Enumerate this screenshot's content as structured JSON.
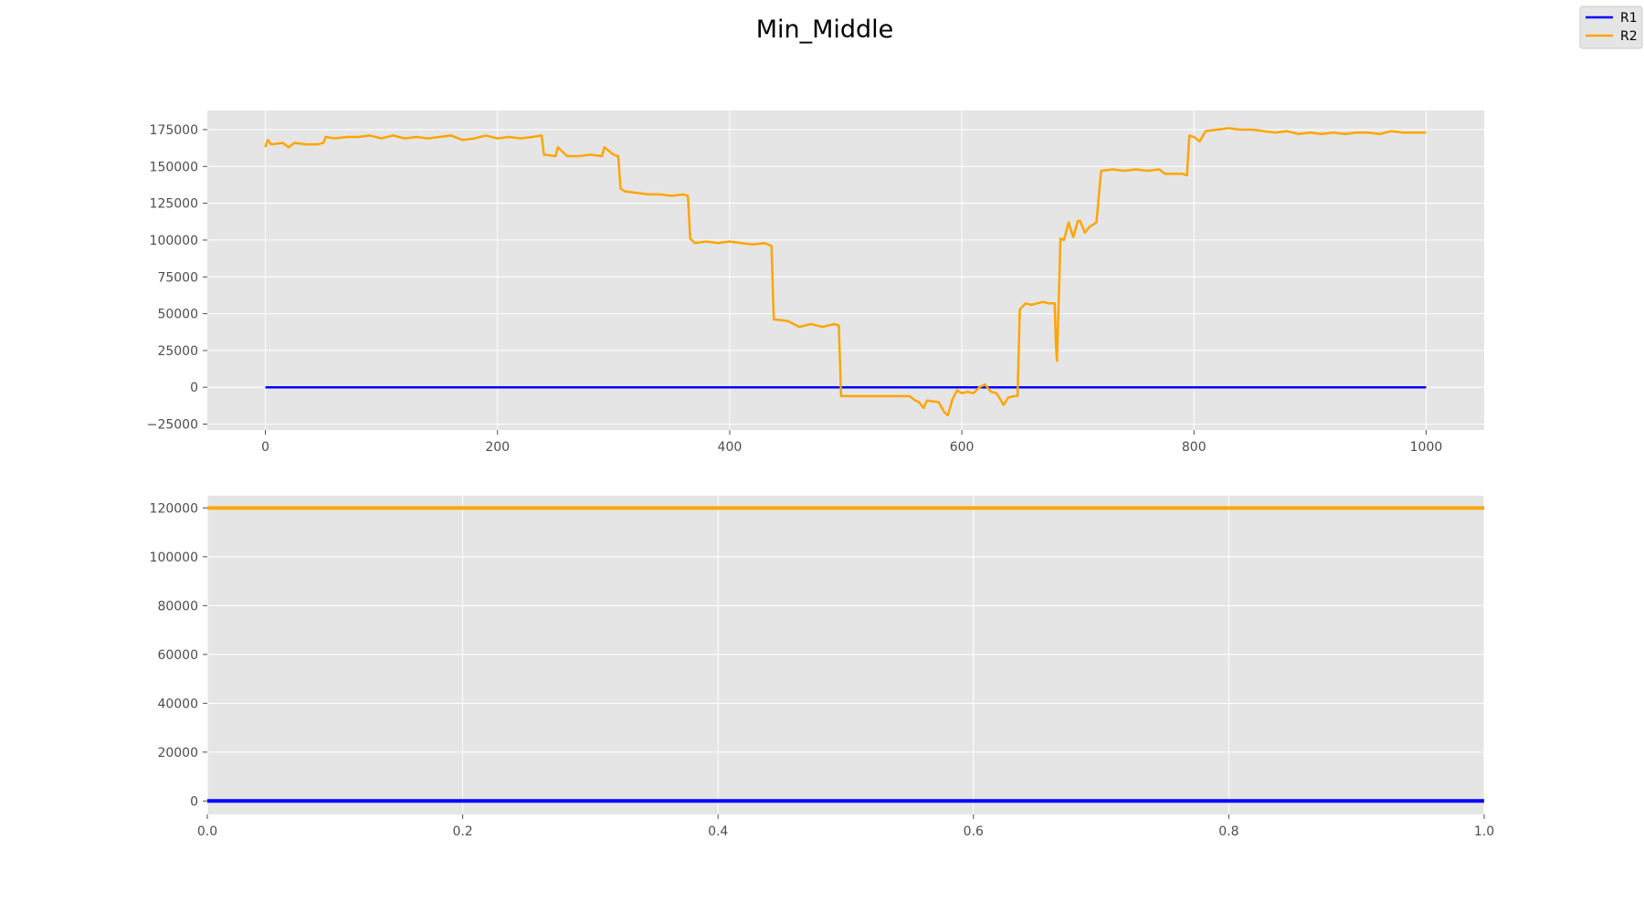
{
  "figure": {
    "title": "Min_Middle",
    "background": "#ffffff",
    "axes_background": "#e5e5e5",
    "grid_color": "#ffffff",
    "tick_color": "#4d4d4d"
  },
  "legend": {
    "placement": "top-right",
    "entries": [
      {
        "label": "R1",
        "color": "#0000ff"
      },
      {
        "label": "R2",
        "color": "#ffa500"
      }
    ]
  },
  "chart_data": [
    {
      "type": "line",
      "grid": true,
      "xlim": [
        -50,
        1050
      ],
      "ylim": [
        -29000,
        188000
      ],
      "xticks": [
        0,
        200,
        400,
        600,
        800,
        1000
      ],
      "xtick_labels": [
        "0",
        "200",
        "400",
        "600",
        "800",
        "1000"
      ],
      "yticks": [
        -25000,
        0,
        25000,
        50000,
        75000,
        100000,
        125000,
        150000,
        175000
      ],
      "ytick_labels": [
        "−25000",
        "0",
        "25000",
        "50000",
        "75000",
        "100000",
        "125000",
        "150000",
        "175000"
      ],
      "series": [
        {
          "name": "R1",
          "color": "#0000ff",
          "x": [
            0,
            1000
          ],
          "y": [
            0,
            0
          ]
        },
        {
          "name": "R2",
          "color": "#ffa500",
          "x": [
            0,
            2,
            5,
            15,
            20,
            25,
            35,
            45,
            50,
            52,
            60,
            70,
            80,
            90,
            100,
            110,
            120,
            130,
            140,
            150,
            160,
            170,
            180,
            190,
            200,
            210,
            220,
            230,
            238,
            240,
            250,
            252,
            260,
            270,
            280,
            290,
            292,
            300,
            304,
            306,
            310,
            320,
            330,
            340,
            350,
            360,
            364,
            366,
            370,
            380,
            390,
            400,
            410,
            420,
            430,
            436,
            438,
            440,
            450,
            460,
            470,
            480,
            490,
            494,
            496,
            500,
            510,
            520,
            530,
            540,
            550,
            555,
            560,
            563,
            567,
            570,
            580,
            585,
            588,
            592,
            596,
            600,
            605,
            610,
            615,
            620,
            625,
            630,
            633,
            636,
            640,
            645,
            648,
            650,
            655,
            660,
            670,
            675,
            680,
            681,
            682,
            685,
            688,
            692,
            696,
            700,
            702,
            706,
            710,
            712,
            716,
            720,
            730,
            740,
            750,
            760,
            770,
            775,
            780,
            790,
            794,
            796,
            800,
            805,
            810,
            820,
            830,
            840,
            850,
            860,
            870,
            880,
            890,
            900,
            910,
            920,
            930,
            940,
            950,
            960,
            970,
            980,
            990,
            1000
          ],
          "y": [
            163000,
            168000,
            165000,
            166000,
            163000,
            166000,
            165000,
            165000,
            166000,
            170000,
            169000,
            170000,
            170000,
            171000,
            169000,
            171000,
            169000,
            170000,
            169000,
            170000,
            171000,
            168000,
            169000,
            171000,
            169000,
            170000,
            169000,
            170000,
            171000,
            158000,
            157000,
            163000,
            157000,
            157000,
            158000,
            157000,
            163000,
            158000,
            157000,
            135000,
            133000,
            132000,
            131000,
            131000,
            130000,
            131000,
            130000,
            101000,
            98000,
            99000,
            98000,
            99000,
            98000,
            97000,
            98000,
            96000,
            46000,
            46000,
            45000,
            41000,
            43000,
            41000,
            43000,
            42000,
            -6000,
            -6000,
            -6000,
            -6000,
            -6000,
            -6000,
            -6000,
            -6000,
            -9000,
            -10000,
            -14000,
            -9000,
            -10000,
            -17000,
            -19000,
            -8000,
            -2000,
            -4000,
            -3000,
            -4000,
            0,
            2000,
            -3000,
            -4000,
            -8000,
            -12000,
            -7000,
            -6000,
            -6000,
            53000,
            57000,
            56000,
            58000,
            57000,
            57000,
            30000,
            18000,
            101000,
            100000,
            112000,
            102000,
            113000,
            113000,
            105000,
            109000,
            110000,
            112000,
            147000,
            148000,
            147000,
            148000,
            147000,
            148000,
            145000,
            145000,
            145000,
            144000,
            171000,
            170000,
            167000,
            174000,
            175000,
            176000,
            175000,
            175000,
            174000,
            173000,
            174000,
            172000,
            173000,
            172000,
            173000,
            172000,
            173000,
            173000,
            172000,
            174000,
            173000,
            173000,
            173000
          ]
        }
      ]
    },
    {
      "type": "line",
      "grid": true,
      "xlim": [
        0.0,
        1.0
      ],
      "ylim": [
        -5500,
        125000
      ],
      "xticks": [
        0.0,
        0.2,
        0.4,
        0.6,
        0.8,
        1.0
      ],
      "xtick_labels": [
        "0.0",
        "0.2",
        "0.4",
        "0.6",
        "0.8",
        "1.0"
      ],
      "yticks": [
        0,
        20000,
        40000,
        60000,
        80000,
        100000,
        120000
      ],
      "ytick_labels": [
        "0",
        "20000",
        "40000",
        "60000",
        "80000",
        "100000",
        "120000"
      ],
      "series": [
        {
          "name": "R1",
          "color": "#0000ff",
          "x": [
            0.0,
            1.0
          ],
          "y": [
            0,
            0
          ]
        },
        {
          "name": "R2",
          "color": "#ffa500",
          "x": [
            0.0,
            1.0
          ],
          "y": [
            120000,
            120000
          ]
        }
      ]
    }
  ]
}
